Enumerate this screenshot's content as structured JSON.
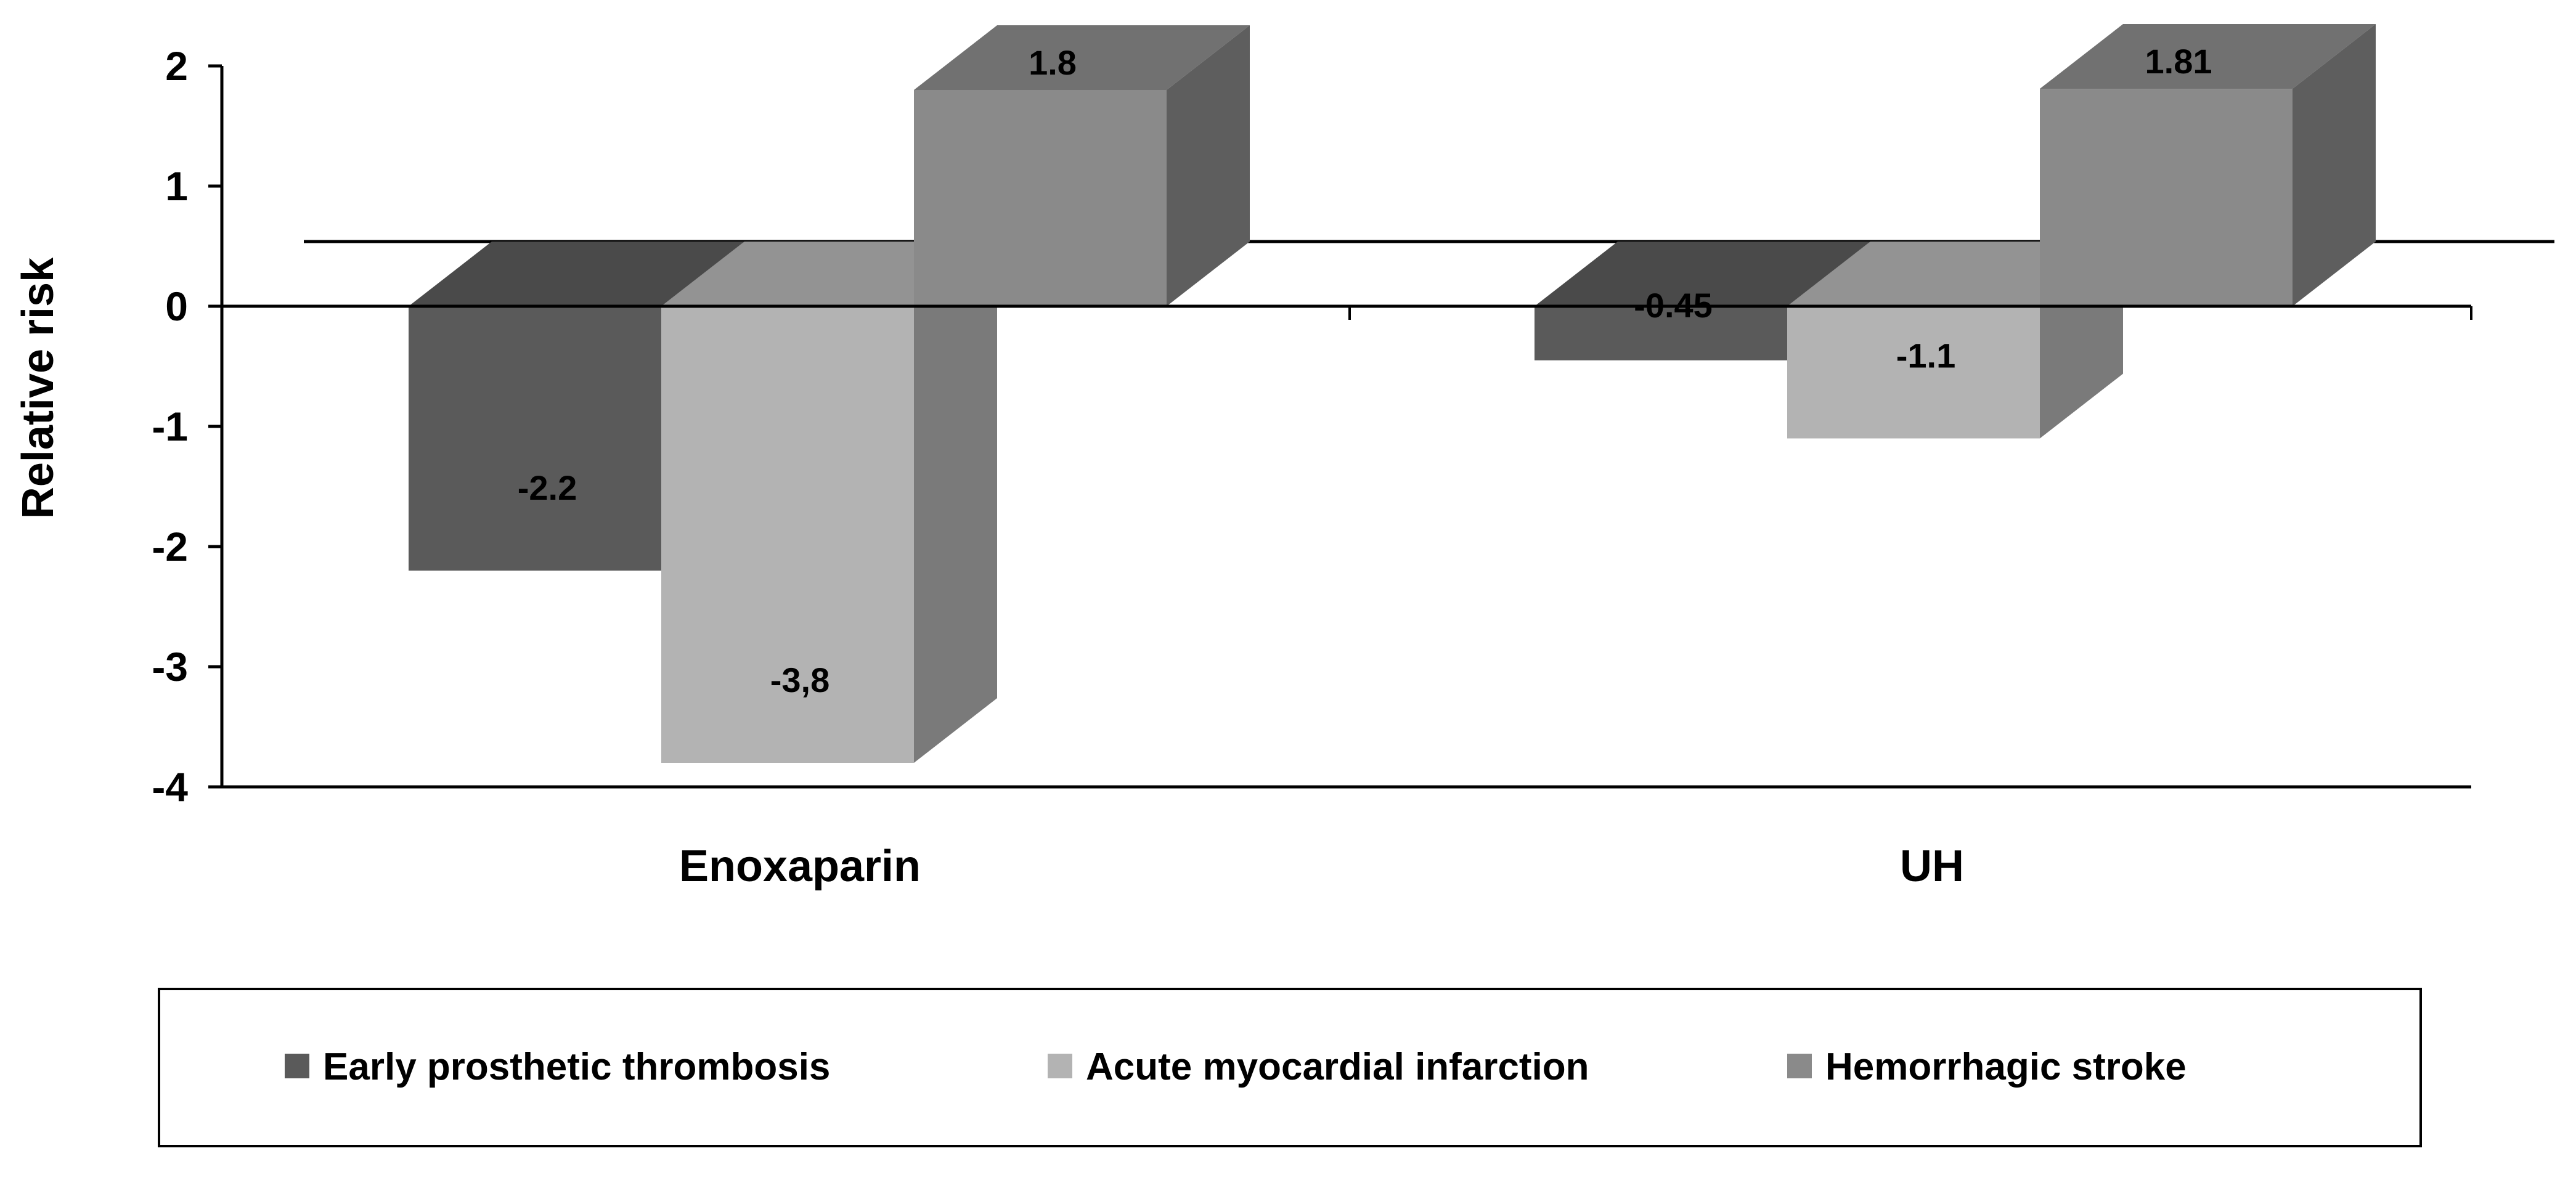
{
  "chart_data": {
    "type": "bar",
    "categories": [
      "Enoxaparin",
      "UH"
    ],
    "series": [
      {
        "name": "Early prosthetic thrombosis",
        "values": [
          -2.2,
          -0.45
        ],
        "labels": [
          "-2.2",
          "-0.45"
        ],
        "color": "#5a5a5a"
      },
      {
        "name": "Acute myocardial infarction",
        "values": [
          -3.8,
          -1.1
        ],
        "labels": [
          "-3,8",
          "-1.1"
        ],
        "color": "#b3b3b3"
      },
      {
        "name": "Hemorrhagic stroke",
        "values": [
          1.8,
          1.81
        ],
        "labels": [
          "1.8",
          "1.81"
        ],
        "color": "#8a8a8a"
      }
    ],
    "ylabel": "Relative risk",
    "xlabel": "",
    "ylim": [
      -4,
      2
    ],
    "yticks": [
      "2",
      "1",
      "0",
      "-1",
      "-2",
      "-3",
      "-4"
    ],
    "style": "3d-column",
    "legend_position": "bottom"
  }
}
